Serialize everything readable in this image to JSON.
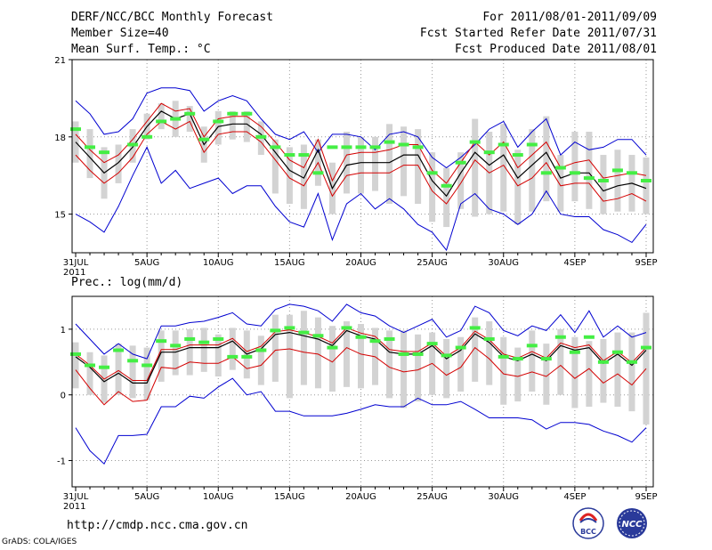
{
  "header": {
    "title": "DERF/NCC/BCC Monthly Forecast",
    "member": "Member Size=40",
    "variable": "Mean Surf. Temp.: °C",
    "period": "For 2011/08/01-2011/09/09",
    "refer": "Fcst Started Refer Date 2011/07/31",
    "produced": "Fcst Produced Date 2011/08/01"
  },
  "footer": {
    "url": "http://cmdp.ncc.cma.gov.cn",
    "grads": "GrADS: COLA/IGES",
    "logo_bcc": "BCC",
    "logo_ncc": "NCC"
  },
  "colors": {
    "bar": "#d3d3d3",
    "mean": "#000000",
    "spread": "#d40000",
    "extreme": "#0000d0",
    "clim": "#44ee44",
    "grid": "#999999"
  },
  "chart_data": [
    {
      "type": "line",
      "title": "Mean Surf. Temp.: °C",
      "xlabel": "",
      "ylabel": "°C",
      "ylim": [
        13.5,
        21
      ],
      "yticks": [
        15,
        18,
        21
      ],
      "x_tick_labels": [
        "31JUL\n2011",
        "5AUG",
        "10AUG",
        "15AUG",
        "20AUG",
        "25AUG",
        "30AUG",
        "4SEP",
        "9SEP"
      ],
      "x_tick_index": [
        0,
        5,
        10,
        15,
        20,
        25,
        30,
        35,
        40
      ],
      "days": 40,
      "mean": [
        17.8,
        17.2,
        16.6,
        17.0,
        17.6,
        18.4,
        19.0,
        18.7,
        18.9,
        17.7,
        18.4,
        18.5,
        18.5,
        18.1,
        17.4,
        16.7,
        16.4,
        17.5,
        16.0,
        16.9,
        17.0,
        17.0,
        17.0,
        17.3,
        17.3,
        16.3,
        15.7,
        16.6,
        17.4,
        16.9,
        17.3,
        16.4,
        16.9,
        17.4,
        16.4,
        16.6,
        16.6,
        15.9,
        16.1,
        16.2,
        16.0
      ],
      "upper": [
        18.1,
        17.5,
        17.0,
        17.3,
        17.9,
        18.6,
        19.3,
        19.0,
        19.1,
        18.0,
        18.7,
        18.8,
        18.8,
        18.4,
        17.8,
        17.1,
        16.8,
        17.9,
        16.3,
        17.3,
        17.4,
        17.4,
        17.5,
        17.7,
        17.7,
        16.7,
        16.2,
        17.0,
        17.8,
        17.3,
        17.8,
        16.8,
        17.3,
        17.8,
        16.8,
        17.0,
        17.1,
        16.4,
        16.5,
        16.6,
        16.5
      ],
      "lower": [
        17.3,
        16.7,
        16.2,
        16.6,
        17.2,
        18.1,
        18.6,
        18.3,
        18.6,
        17.4,
        18.1,
        18.2,
        18.2,
        17.8,
        17.1,
        16.4,
        16.1,
        17.0,
        15.7,
        16.5,
        16.6,
        16.6,
        16.6,
        16.9,
        16.9,
        15.9,
        15.4,
        16.2,
        17.1,
        16.6,
        16.9,
        16.1,
        16.4,
        17.0,
        16.1,
        16.2,
        16.2,
        15.5,
        15.6,
        15.8,
        15.5
      ],
      "max": [
        19.4,
        18.9,
        18.1,
        18.2,
        18.7,
        19.7,
        19.9,
        19.9,
        19.8,
        19.0,
        19.4,
        19.6,
        19.4,
        18.7,
        18.1,
        17.9,
        18.2,
        17.4,
        18.1,
        18.1,
        18.0,
        17.5,
        18.1,
        18.2,
        18.0,
        17.2,
        16.8,
        17.2,
        17.7,
        18.3,
        18.6,
        17.6,
        18.2,
        18.7,
        17.3,
        17.8,
        17.5,
        17.6,
        17.9,
        17.9,
        17.3
      ],
      "min": [
        15.0,
        14.7,
        14.3,
        15.3,
        16.5,
        17.6,
        16.2,
        16.7,
        16.0,
        16.2,
        16.4,
        15.8,
        16.1,
        16.1,
        15.3,
        14.7,
        14.5,
        15.8,
        14.0,
        15.4,
        15.8,
        15.2,
        15.6,
        15.2,
        14.6,
        14.3,
        13.6,
        15.4,
        15.8,
        15.2,
        15.0,
        14.6,
        15.0,
        15.9,
        15.0,
        14.9,
        14.9,
        14.4,
        14.2,
        13.9,
        14.6
      ],
      "bar_top": [
        18.6,
        18.3,
        17.6,
        17.7,
        18.3,
        18.9,
        19.3,
        19.4,
        19.2,
        18.4,
        19.0,
        19.0,
        19.0,
        18.6,
        17.9,
        17.6,
        17.7,
        17.9,
        17.0,
        18.2,
        18.0,
        18.0,
        18.5,
        18.4,
        18.3,
        17.4,
        16.8,
        17.4,
        18.7,
        18.2,
        18.5,
        17.5,
        18.3,
        18.8,
        17.3,
        18.2,
        18.2,
        17.3,
        17.5,
        17.3,
        17.2
      ],
      "bar_bottom": [
        17.0,
        16.4,
        15.6,
        16.2,
        17.0,
        17.9,
        18.3,
        18.0,
        18.2,
        17.0,
        17.7,
        17.9,
        17.8,
        17.3,
        15.8,
        15.4,
        15.2,
        16.1,
        15.0,
        15.8,
        15.8,
        15.9,
        15.4,
        15.7,
        15.4,
        14.7,
        14.5,
        15.2,
        14.9,
        15.0,
        15.1,
        14.6,
        15.1,
        15.5,
        15.1,
        15.5,
        15.2,
        15.0,
        15.1,
        15.1,
        15.0
      ],
      "clim": [
        18.3,
        17.6,
        17.4,
        null,
        17.7,
        18.0,
        18.6,
        18.7,
        18.9,
        17.9,
        18.6,
        18.9,
        18.9,
        18.0,
        17.6,
        17.3,
        17.3,
        16.6,
        17.6,
        17.6,
        17.6,
        17.6,
        17.8,
        17.7,
        17.6,
        16.6,
        16.1,
        17.0,
        17.8,
        17.4,
        17.7,
        17.3,
        17.7,
        16.6,
        16.8,
        16.6,
        16.4,
        16.3,
        16.7,
        16.6,
        16.3
      ]
    },
    {
      "type": "line",
      "title": "Prec.: log(mm/d)",
      "xlabel": "",
      "ylabel": "log(mm/d)",
      "ylim": [
        -1.4,
        1.5
      ],
      "yticks": [
        -1,
        0,
        1
      ],
      "x_tick_labels": [
        "31JUL\n2011",
        "5AUG",
        "10AUG",
        "15AUG",
        "20AUG",
        "25AUG",
        "30AUG",
        "4SEP",
        "9SEP"
      ],
      "x_tick_index": [
        0,
        5,
        10,
        15,
        20,
        25,
        30,
        35,
        40
      ],
      "days": 40,
      "mean": [
        0.58,
        0.42,
        0.2,
        0.33,
        0.18,
        0.18,
        0.65,
        0.65,
        0.72,
        0.72,
        0.72,
        0.82,
        0.62,
        0.7,
        0.92,
        0.95,
        0.9,
        0.85,
        0.75,
        0.98,
        0.9,
        0.85,
        0.65,
        0.62,
        0.62,
        0.75,
        0.55,
        0.68,
        0.93,
        0.8,
        0.58,
        0.52,
        0.62,
        0.52,
        0.75,
        0.68,
        0.72,
        0.48,
        0.62,
        0.45,
        0.68
      ],
      "upper": [
        0.62,
        0.45,
        0.24,
        0.37,
        0.22,
        0.22,
        0.69,
        0.69,
        0.76,
        0.76,
        0.76,
        0.86,
        0.66,
        0.74,
        0.96,
        0.99,
        0.94,
        0.89,
        0.79,
        1.02,
        0.94,
        0.89,
        0.69,
        0.66,
        0.66,
        0.79,
        0.59,
        0.72,
        0.97,
        0.84,
        0.62,
        0.56,
        0.66,
        0.56,
        0.79,
        0.72,
        0.76,
        0.52,
        0.66,
        0.49,
        0.72
      ],
      "lower": [
        0.38,
        0.1,
        -0.15,
        0.05,
        -0.1,
        -0.08,
        0.42,
        0.4,
        0.5,
        0.48,
        0.48,
        0.58,
        0.4,
        0.45,
        0.68,
        0.7,
        0.65,
        0.62,
        0.5,
        0.72,
        0.62,
        0.58,
        0.42,
        0.35,
        0.38,
        0.48,
        0.3,
        0.42,
        0.72,
        0.55,
        0.32,
        0.28,
        0.35,
        0.28,
        0.45,
        0.25,
        0.4,
        0.18,
        0.32,
        0.15,
        0.4
      ],
      "max": [
        1.08,
        0.85,
        0.62,
        0.78,
        0.62,
        0.55,
        1.05,
        1.05,
        1.1,
        1.12,
        1.18,
        1.25,
        1.08,
        1.05,
        1.3,
        1.38,
        1.35,
        1.28,
        1.12,
        1.38,
        1.25,
        1.2,
        1.05,
        0.95,
        1.05,
        1.15,
        0.88,
        0.98,
        1.35,
        1.25,
        0.98,
        0.9,
        1.05,
        0.98,
        1.22,
        0.95,
        1.28,
        0.88,
        1.05,
        0.88,
        0.95
      ],
      "min": [
        -0.5,
        -0.85,
        -1.05,
        -0.62,
        -0.62,
        -0.6,
        -0.18,
        -0.18,
        -0.02,
        -0.05,
        0.12,
        0.25,
        0.0,
        0.05,
        -0.25,
        -0.25,
        -0.32,
        -0.32,
        -0.32,
        -0.28,
        -0.22,
        -0.15,
        -0.18,
        -0.18,
        -0.05,
        -0.15,
        -0.15,
        -0.1,
        -0.22,
        -0.35,
        -0.35,
        -0.35,
        -0.38,
        -0.52,
        -0.42,
        -0.42,
        -0.45,
        -0.55,
        -0.62,
        -0.72,
        -0.5
      ],
      "bar_top": [
        0.8,
        0.65,
        0.6,
        0.78,
        0.75,
        0.72,
        0.98,
        0.98,
        1.0,
        1.02,
        0.92,
        1.02,
        0.98,
        0.9,
        1.22,
        1.22,
        1.28,
        1.18,
        1.05,
        1.12,
        1.08,
        1.02,
        0.98,
        0.98,
        0.92,
        0.95,
        0.85,
        0.88,
        1.18,
        1.12,
        0.88,
        0.72,
        0.98,
        0.78,
        1.0,
        0.88,
        0.82,
        0.85,
        0.95,
        0.95,
        1.25
      ],
      "bar_bottom": [
        0.1,
        0.0,
        -0.12,
        0.0,
        -0.05,
        -0.08,
        0.2,
        0.3,
        0.3,
        0.35,
        0.28,
        0.38,
        0.25,
        0.15,
        0.2,
        -0.05,
        0.15,
        0.1,
        0.05,
        0.12,
        0.1,
        0.15,
        -0.05,
        -0.2,
        -0.1,
        0.0,
        -0.05,
        0.05,
        0.2,
        0.15,
        -0.15,
        -0.1,
        0.05,
        -0.15,
        0.0,
        -0.2,
        -0.18,
        -0.12,
        -0.18,
        -0.25,
        -0.45
      ],
      "clim": [
        0.62,
        0.45,
        0.42,
        0.68,
        0.52,
        0.45,
        0.82,
        0.75,
        0.85,
        0.8,
        0.85,
        0.58,
        0.58,
        0.68,
        0.98,
        1.02,
        0.95,
        0.9,
        0.72,
        1.02,
        0.88,
        0.82,
        0.85,
        0.62,
        0.62,
        0.78,
        0.6,
        0.72,
        1.02,
        0.85,
        0.58,
        0.55,
        0.75,
        0.55,
        0.88,
        0.65,
        0.88,
        0.5,
        0.65,
        0.5,
        0.72
      ]
    }
  ]
}
